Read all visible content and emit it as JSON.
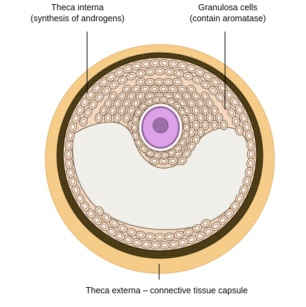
{
  "labels": {
    "theca_interna": {
      "title": "Theca interna",
      "detail": "(synthesis of androgens)"
    },
    "granulosa": {
      "title": "Granulosa cells",
      "detail": "(contain aromatase)"
    },
    "theca_externa": {
      "text": "Theca externa – connective tissue capsule"
    }
  },
  "colors": {
    "theca_externa": "#f5c97e",
    "theca_interna": "#4a3a14",
    "granulosa_cell": "#f7dcc4",
    "granulosa_outline": "#6e5a46",
    "granulosa_nucleus": "#fdf3e8",
    "antrum": "#f1efe9",
    "oocyte": "#d99ee6",
    "oocyte_nucleus": "#9c6fa9",
    "zona": "#8f5f9e",
    "corona_gap": "#fbfaf7",
    "leader": "#000000"
  }
}
